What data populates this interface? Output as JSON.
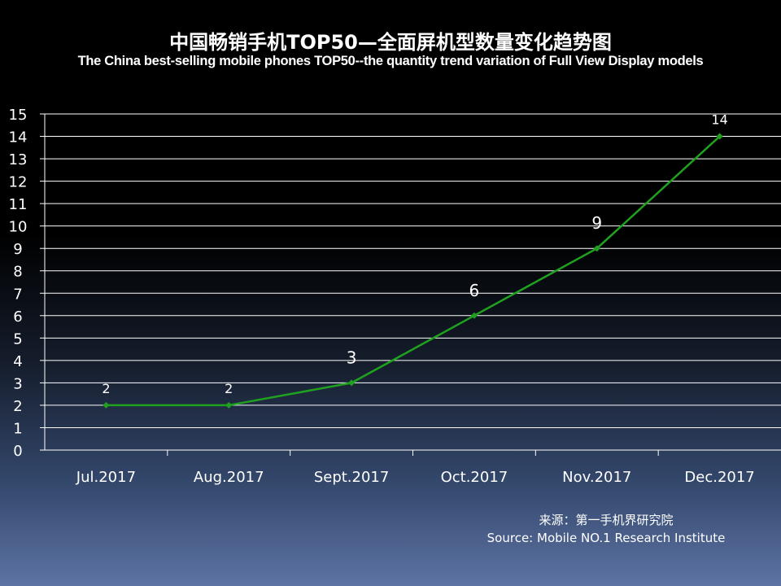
{
  "title": "中国畅销手机TOP50—全面屏机型数量变化趋势图",
  "subtitle": "The China best-selling mobile phones TOP50--the quantity trend variation of Full View Display models",
  "source": {
    "cn": "来源：第一手机界研究院",
    "en": "Source: Mobile NO.1 Research Institute"
  },
  "colors": {
    "line": "#1fa11f",
    "grid": "#ffffff",
    "text": "#ffffff"
  },
  "chart_data": {
    "type": "line",
    "categories": [
      "Jul.2017",
      "Aug.2017",
      "Sept.2017",
      "Oct.2017",
      "Nov.2017",
      "Dec.2017"
    ],
    "values": [
      2,
      2,
      3,
      6,
      9,
      14
    ],
    "data_labels": [
      "2",
      "2",
      "3",
      "6",
      "9",
      "14"
    ],
    "yticks": [
      0,
      1,
      2,
      3,
      4,
      5,
      6,
      7,
      8,
      9,
      10,
      11,
      12,
      13,
      14,
      15
    ],
    "ylim": [
      0,
      15
    ],
    "grid": true,
    "legend": "none"
  }
}
